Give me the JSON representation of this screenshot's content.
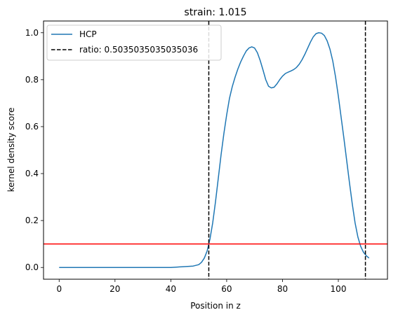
{
  "chart_data": {
    "type": "line",
    "title": "strain: 1.015",
    "xlabel": "Position in z",
    "ylabel": "kernel density score",
    "xlim": [
      -5.6,
      117.6
    ],
    "ylim": [
      -0.05,
      1.05
    ],
    "xticks": [
      0,
      20,
      40,
      60,
      80,
      100
    ],
    "yticks": [
      0.0,
      0.2,
      0.4,
      0.6,
      0.8,
      1.0
    ],
    "xtick_labels": [
      "0",
      "20",
      "40",
      "60",
      "80",
      "100"
    ],
    "ytick_labels": [
      "0.0",
      "0.2",
      "0.4",
      "0.6",
      "0.8",
      "1.0"
    ],
    "grid": false,
    "legend_position": "top-left",
    "series": [
      {
        "name": "HCP",
        "color": "#1f77b4",
        "x": [
          0,
          10,
          20,
          30,
          36,
          40,
          44,
          48,
          50,
          51,
          52,
          53,
          54,
          55,
          56,
          57,
          58,
          59,
          60,
          61,
          62,
          63,
          64,
          65,
          66,
          67,
          68,
          69,
          70,
          71,
          72,
          73,
          74,
          75,
          76,
          77,
          78,
          79,
          80,
          81,
          82,
          83,
          84,
          85,
          86,
          87,
          88,
          89,
          90,
          91,
          92,
          93,
          94,
          95,
          96,
          97,
          98,
          99,
          100,
          101,
          102,
          103,
          104,
          105,
          106,
          107,
          108,
          109,
          110,
          111
        ],
        "values": [
          0.0,
          0.0,
          0.0,
          0.0,
          0.0,
          0.0,
          0.003,
          0.006,
          0.012,
          0.022,
          0.04,
          0.07,
          0.12,
          0.19,
          0.28,
          0.38,
          0.48,
          0.57,
          0.65,
          0.72,
          0.77,
          0.81,
          0.845,
          0.875,
          0.9,
          0.922,
          0.935,
          0.94,
          0.935,
          0.915,
          0.882,
          0.842,
          0.8,
          0.772,
          0.765,
          0.768,
          0.782,
          0.8,
          0.815,
          0.826,
          0.832,
          0.837,
          0.843,
          0.852,
          0.866,
          0.885,
          0.908,
          0.934,
          0.96,
          0.982,
          0.996,
          1.0,
          0.998,
          0.988,
          0.965,
          0.93,
          0.88,
          0.812,
          0.73,
          0.64,
          0.55,
          0.455,
          0.36,
          0.27,
          0.19,
          0.13,
          0.09,
          0.065,
          0.05,
          0.04
        ]
      }
    ],
    "vlines": {
      "name": "ratio: 0.5035035035035036",
      "color": "#000000",
      "style": "dashed",
      "x": [
        53.6,
        109.7
      ]
    },
    "hline": {
      "y": 0.1,
      "color": "#ff0000"
    }
  }
}
